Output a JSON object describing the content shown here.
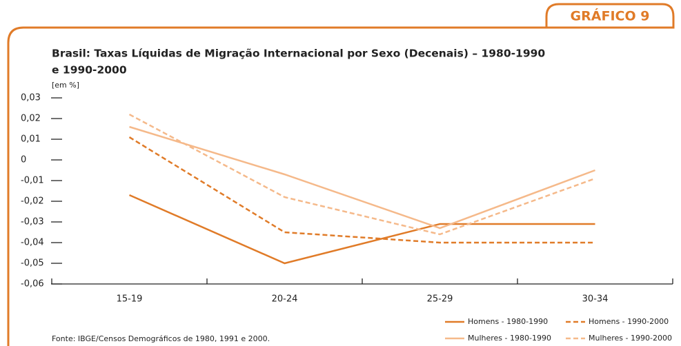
{
  "badge": "GRÁFICO 9",
  "chart_data": {
    "type": "line",
    "title": "Brasil: Taxas Líquidas de Migração Internacional por Sexo (Decenais) – 1980-1990",
    "title_line2": "e 1990-2000",
    "y_unit": "[em %]",
    "source": "Fonte: IBGE/Censos Demográficos de 1980, 1991 e 2000.",
    "categories": [
      "15-19",
      "20-24",
      "25-29",
      "30-34"
    ],
    "ylim": [
      -0.06,
      0.03
    ],
    "yticks": [
      {
        "value": 0.03,
        "label": "0,03"
      },
      {
        "value": 0.02,
        "label": "0,02"
      },
      {
        "value": 0.01,
        "label": "0,01"
      },
      0,
      {
        "value": -0.01,
        "label": "-0,01"
      },
      {
        "value": -0.02,
        "label": "-0,02"
      },
      {
        "value": -0.03,
        "label": "-0,03"
      },
      {
        "value": -0.04,
        "label": "-0,04"
      },
      {
        "value": -0.05,
        "label": "-0,05"
      },
      {
        "value": -0.06,
        "label": "-0,06"
      }
    ],
    "series": [
      {
        "name": "Homens - 1980-1990",
        "color": "#e07b28",
        "dashed": false,
        "values": [
          -0.017,
          -0.05,
          -0.031,
          -0.031
        ]
      },
      {
        "name": "Homens - 1990-2000",
        "color": "#e07b28",
        "dashed": true,
        "values": [
          0.011,
          -0.035,
          -0.04,
          -0.04
        ]
      },
      {
        "name": "Mulheres - 1980-1990",
        "color": "#f5b98a",
        "dashed": false,
        "values": [
          0.016,
          -0.007,
          -0.033,
          -0.005
        ]
      },
      {
        "name": "Mulheres - 1990-2000",
        "color": "#f5b98a",
        "dashed": true,
        "values": [
          0.022,
          -0.018,
          -0.036,
          -0.009
        ]
      }
    ]
  }
}
